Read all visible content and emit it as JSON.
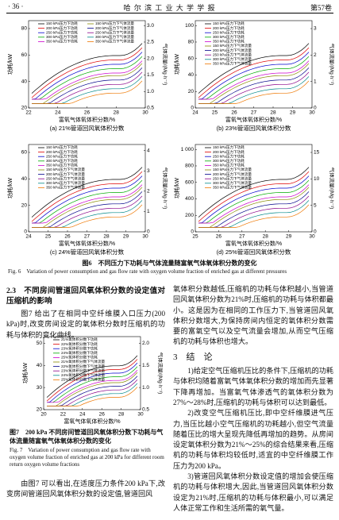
{
  "header": {
    "page": "· 36 ·",
    "journal": "哈 尔 滨 工 业 大 学 学 报",
    "volume": "第57卷"
  },
  "figure6": {
    "panels": [
      {
        "caption": "(a) 21%管道回风氧体积分数",
        "xlabel": "富氧气体氧体积分数/%",
        "ylabel": "功耗/kW",
        "y2label": "气体流量/(Mg·h⁻¹)",
        "xticks": [
          "22",
          "24",
          "26",
          "28",
          "30"
        ],
        "yticks": [
          "20",
          "40",
          "60",
          "80"
        ],
        "y2ticks": [
          "0.5",
          "1.0",
          "1.5",
          "2.0",
          "2.5",
          "3.0"
        ],
        "legend": [
          "150 kPa压力下功耗",
          "200 kPa压力下功耗",
          "250 kPa压力下功耗",
          "300 kPa压力下功耗",
          "350 kPa压力下功耗",
          "150 kPa压力下气体流量",
          "200 kPa压力下气体流量",
          "250 kPa压力下气体流量",
          "300 kPa压力下气体流量",
          "350 kPa压力下气体流量"
        ]
      },
      {
        "caption": "(b) 23%管道回风氧体积分数",
        "xlabel": "富氧气体氧体积分数/%",
        "ylabel": "功耗/kW",
        "y2label": "气体流量/(Mg·h⁻¹)",
        "xticks": [
          "24",
          "25",
          "26",
          "27",
          "28",
          "29",
          "30"
        ],
        "yticks": [
          "0",
          "20",
          "40",
          "60",
          "80",
          "100"
        ],
        "y2ticks": [
          "0",
          "1",
          "2",
          "3"
        ],
        "legend": [
          "150 kPa压力下功耗",
          "200 kPa压力下功耗",
          "250 kPa压力下功耗",
          "300 kPa压力下功耗",
          "350 kPa压力下功耗",
          "150 kPa压力下气体流量",
          "200 kPa压力下气体流量",
          "250 kPa压力下气体流量",
          "300 kPa压力下气体流量",
          "350 kPa压力下气体流量"
        ]
      },
      {
        "caption": "(c) 24%管道回风氧体积分数",
        "xlabel": "富氧气体氧体积分数/%",
        "ylabel": "功耗/kW",
        "y2label": "气体流量/(Mg·h⁻¹)",
        "xticks": [
          "24",
          "25",
          "26",
          "27",
          "28",
          "29",
          "30"
        ],
        "yticks": [
          "0",
          "20",
          "40",
          "60"
        ],
        "y2ticks": [
          "0",
          "1",
          "2",
          "3",
          "4"
        ],
        "legend": [
          "150 kPa压力下功耗",
          "200 kPa压力下功耗",
          "250 kPa压力下功耗",
          "300 kPa压力下功耗",
          "350 kPa压力下功耗",
          "150 kPa压力下气体流量",
          "200 kPa压力下气体流量",
          "250 kPa压力下气体流量",
          "300 kPa压力下气体流量",
          "350 kPa压力下气体流量"
        ]
      },
      {
        "caption": "(d) 25%管道回风氧体积分数",
        "xlabel": "富氧气体氧体积分数/%",
        "ylabel": "功耗/kW",
        "y2label": "气体流量/(Mg·h⁻¹)",
        "xticks": [
          "25",
          "26",
          "27",
          "28",
          "29",
          "30"
        ],
        "yticks": [
          "0",
          "200",
          "400",
          "600",
          "800",
          "1 000"
        ],
        "y2ticks": [
          "0",
          "5",
          "10",
          "15"
        ],
        "legend": [
          "150 kPa压力下功耗",
          "200 kPa压力下功耗",
          "250 kPa压力下功耗",
          "300 kPa压力下功耗",
          "350 kPa压力下功耗",
          "150 kPa压力下气体流量",
          "200 kPa压力下气体流量",
          "250 kPa压力下气体流量",
          "300 kPa压力下气体流量",
          "350 kPa压力下气体流量"
        ]
      }
    ],
    "caption": "图6　不同压力下功耗与气体流量随富氧气体氧体积分数的变化",
    "caption_en": "Fig. 6　Variation of power consumption and gas flow rate with oxygen volume fraction of enriched gas at different pressures"
  },
  "section": {
    "heading": "2.3　不同房间管道回风氧体积分数的设定值对压缩机的影响",
    "paragraph": "图7 给出了在相同中空纤维膜入口压力(200 kPa)时,改变房间设定的氧体积分数时压缩机的功耗与体积的变化曲线。"
  },
  "figure7": {
    "panel": {
      "xlabel": "富氧气体氧体积分数/%",
      "ylabel": "功耗/kW",
      "y2label": "气体流量/(Mg·h⁻¹)",
      "xticks": [
        "20",
        "22",
        "24",
        "26",
        "28",
        "30"
      ],
      "yticks": [
        "20",
        "30",
        "40",
        "50"
      ],
      "y2ticks": [
        "0.5",
        "1.0",
        "1.5",
        "2.0"
      ],
      "legend": [
        "21%氧体积分数下功耗",
        "22%氧体积分数下功耗",
        "23%氧体积分数下功耗",
        "24%氧体积分数下功耗",
        "25%氧体积分数下功耗",
        "21%氧体积分数下气体流量",
        "22%氧体积分数下气体流量",
        "23%氧体积分数下气体流量",
        "24%氧体积分数下气体流量",
        "25%氧体积分数下气体流量"
      ]
    },
    "caption": "图7　200 kPa 不同房间管道回风氧体积分数下功耗与气体流量随富氧气体氧体积分数的变化",
    "caption_en": "Fig. 7　Variation of power consumption and gas flow rate with oxygen volume fraction of enriched gas at 200 kPa for different room return oxygen volume fractions"
  },
  "left_tail": "由图7 可以看出,在适度压力条件200 kPa下,改变房间管道回风氧体积分数的设定值,管道回风",
  "right_top": "氧体积分数越低,压缩机的功耗与体积越小,当管道回风氧体积分数为21%时,压缩机的功耗与体积都最小。这是因为在相同的工作压力下,当管道回风氧体积分数增大,为保持房间内恒定的氧体积分数需要的富氧空气以及空气流量会增加,从而空气压缩机的功耗与体积也增大。",
  "conclusion": {
    "heading": "3　结　论",
    "items": [
      "1)给定空气压缩机压比的条件下,压缩机的功耗与体积均随着富氧气体氧体积分数的增加而先显著下降再增加。当富氧气体渗透气的氧体积分数为27%～28%时,压缩机的功耗与体积可以达到最低。",
      "2)改变空气压缩机压比,即中空纤维膜进气压力,当压比越小空气压缩机的功耗越小,但空气流量随着压比的增大呈现先降低再增加的趋势。从房间设定氧体积分数为21%～25%的综合结果来看,压缩机的功耗与体积均较低时,适宜的中空纤维膜工作压力为200 kPa。",
      "3)管道回风氧体积分数设定值的增加会使压缩机的功耗与体积增大,因此,当管道回风氧体积分数设定为21%时,压缩机的功耗与体积最小,可以满足人体正常工作和生活所需的氧气量。"
    ]
  }
}
